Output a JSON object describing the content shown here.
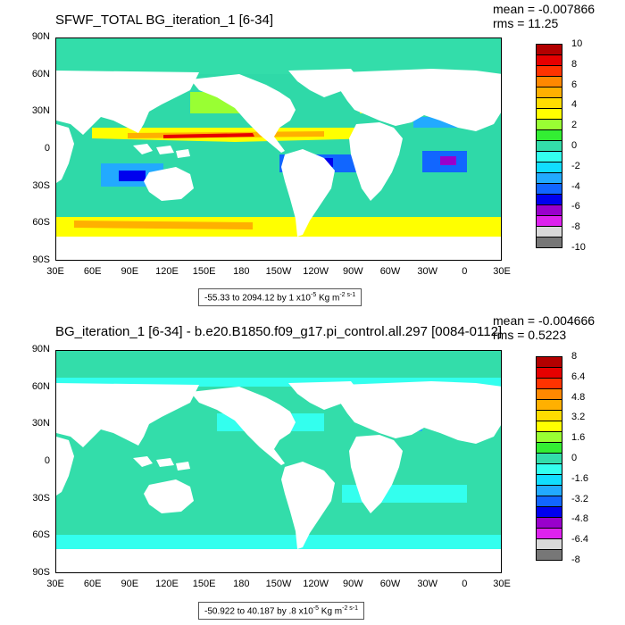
{
  "panels": [
    {
      "title": "SFWF_TOTAL BG_iteration_1 [6-34]",
      "stats": {
        "mean": "mean = -0.007866",
        "rms": "rms = 11.25"
      },
      "range_prefix": "-55.33 to 2094.12 by 1 x10",
      "range_units": "Kg m",
      "colorbar": {
        "labels": [
          "10",
          "8",
          "6",
          "4",
          "2",
          "0",
          "-2",
          "-4",
          "-6",
          "-8",
          "-10"
        ],
        "colors": [
          "#b30000",
          "#e60000",
          "#ff3300",
          "#ff8800",
          "#ffb000",
          "#ffdd00",
          "#ffff00",
          "#99ff33",
          "#33ee33",
          "#33ddaa",
          "#33ffee",
          "#11ddff",
          "#22aaff",
          "#1166ff",
          "#0000ee",
          "#9900cc",
          "#dd22ee",
          "#d9d9d9",
          "#777777"
        ]
      },
      "ocean_fill": "#2fd9a8"
    },
    {
      "title": "BG_iteration_1 [6-34] - b.e20.B1850.f09_g17.pi_control.all.297 [0084-0112]",
      "stats": {
        "mean": "mean = -0.004666",
        "rms": "rms = 0.5223"
      },
      "range_prefix": "-50.922 to 40.187 by .8 x10",
      "range_units": "Kg m",
      "colorbar": {
        "labels": [
          "8",
          "6.4",
          "4.8",
          "3.2",
          "1.6",
          "0",
          "-1.6",
          "-3.2",
          "-4.8",
          "-6.4",
          "-8"
        ],
        "colors": [
          "#b30000",
          "#e60000",
          "#ff3300",
          "#ff8800",
          "#ffb000",
          "#ffdd00",
          "#ffff00",
          "#99ff33",
          "#33ee33",
          "#33ddaa",
          "#33ffee",
          "#11ddff",
          "#22aaff",
          "#1166ff",
          "#0000ee",
          "#9900cc",
          "#dd22ee",
          "#d9d9d9",
          "#777777"
        ]
      },
      "ocean_fill": "#39e6c2"
    }
  ],
  "axes": {
    "lat_labels": [
      "90N",
      "60N",
      "30N",
      "0",
      "30S",
      "60S",
      "90S"
    ],
    "lon_labels": [
      "30E",
      "60E",
      "90E",
      "120E",
      "150E",
      "180",
      "150W",
      "120W",
      "90W",
      "60W",
      "30W",
      "0",
      "30E"
    ]
  },
  "chart_data": [
    {
      "type": "heatmap",
      "title": "SFWF_TOTAL BG_iteration_1 [6-34]",
      "mean": -0.007866,
      "rms": 11.25,
      "x_range": [
        30,
        390
      ],
      "y_range": [
        -90,
        90
      ],
      "colorbar_min": -10,
      "colorbar_max": 10,
      "data_min": -55.33,
      "data_max": 2094.12,
      "contour_interval": 1,
      "scale_factor": "x10^-5",
      "units": "Kg m^-2 s^-1"
    },
    {
      "type": "heatmap",
      "title": "BG_iteration_1 [6-34] - b.e20.B1850.f09_g17.pi_control.all.297 [0084-0112]",
      "mean": -0.004666,
      "rms": 0.5223,
      "x_range": [
        30,
        390
      ],
      "y_range": [
        -90,
        90
      ],
      "colorbar_min": -8,
      "colorbar_max": 8,
      "data_min": -50.922,
      "data_max": 40.187,
      "contour_interval": 0.8,
      "scale_factor": "x10^-5",
      "units": "Kg m^-2 s^-1"
    }
  ]
}
